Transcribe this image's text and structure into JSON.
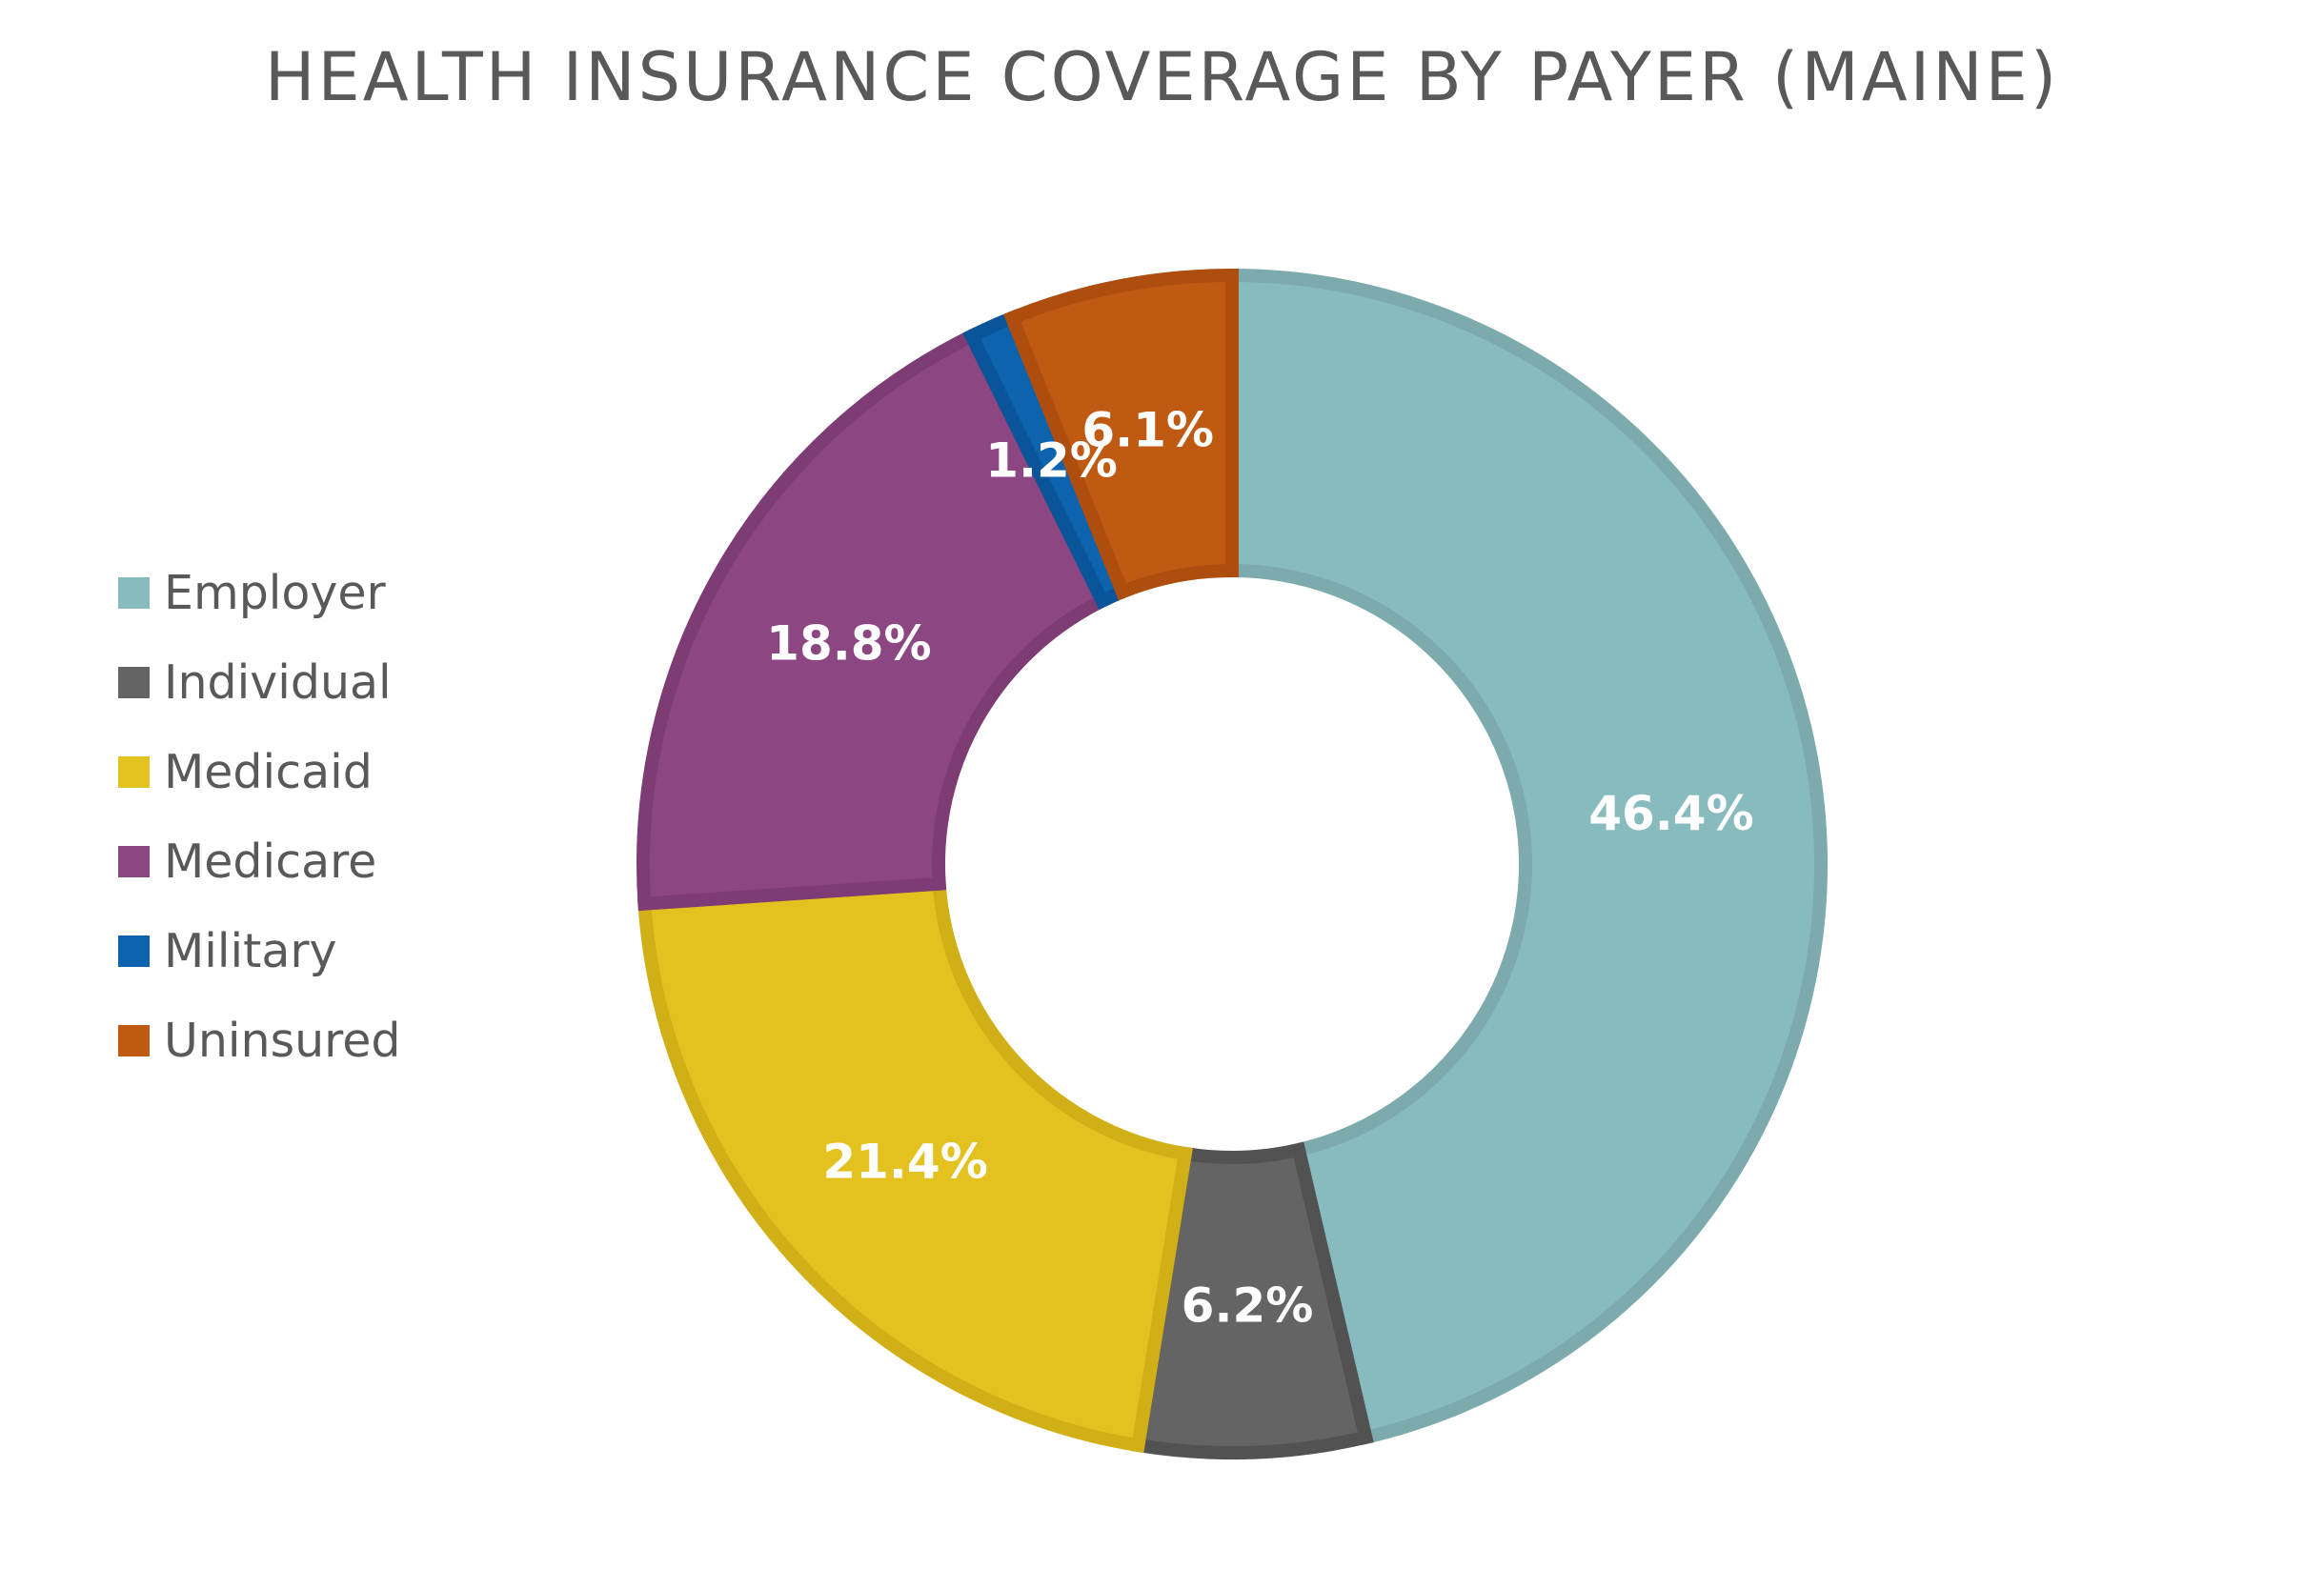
{
  "chart_data": {
    "type": "pie",
    "title": "HEALTH INSURANCE COVERAGE BY PAYER (MAINE)",
    "donut": true,
    "legend_position": "left",
    "categories": [
      "Employer",
      "Individual",
      "Medicaid",
      "Medicare",
      "Military",
      "Uninsured"
    ],
    "values": [
      46.4,
      6.2,
      21.4,
      18.8,
      1.2,
      6.1
    ],
    "data_labels": [
      "46.4%",
      "6.2%",
      "21.4%",
      "18.8%",
      "1.2%",
      "6.1%"
    ],
    "colors": [
      "#88BBBE",
      "#646464",
      "#E3C21F",
      "#8C4682",
      "#0E63AE",
      "#C05A12"
    ],
    "border_colors": [
      "#7DAAAD",
      "#525252",
      "#D1AF17",
      "#7E3C74",
      "#0A559A",
      "#AD4E0F"
    ]
  }
}
